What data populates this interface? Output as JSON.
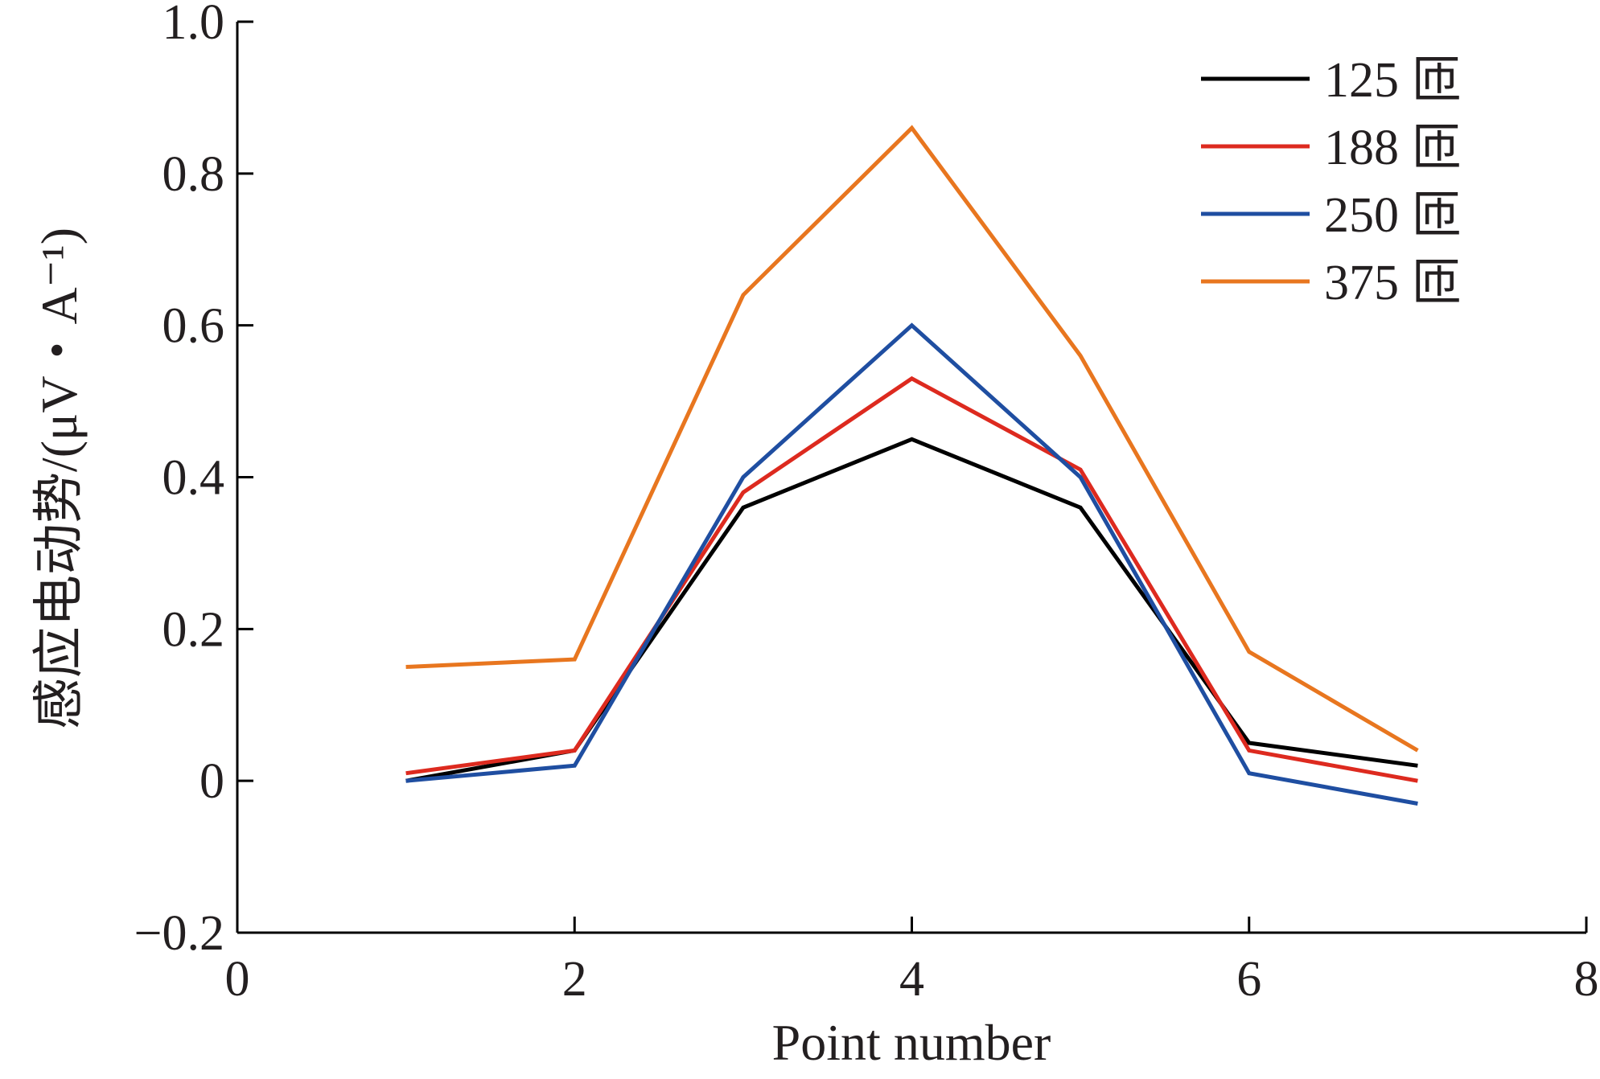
{
  "chart_data": {
    "type": "line",
    "title": "",
    "xlabel": "Point number",
    "ylabel": "感应电动势/(μV・A⁻¹)",
    "xlim": [
      0,
      8
    ],
    "ylim": [
      -0.2,
      1.0
    ],
    "x_ticks": [
      0,
      2,
      4,
      6,
      8
    ],
    "x_tick_labels": [
      "0",
      "2",
      "4",
      "6",
      "8"
    ],
    "y_ticks": [
      -0.2,
      0,
      0.2,
      0.4,
      0.6,
      0.8,
      1.0
    ],
    "y_tick_labels": [
      "−0.2",
      "0",
      "0.2",
      "0.4",
      "0.6",
      "0.8",
      "1.0"
    ],
    "grid": false,
    "legend_position": "top-right",
    "x": [
      1,
      2,
      3,
      4,
      5,
      6,
      7
    ],
    "series": [
      {
        "name": "125 匝",
        "color": "#000000",
        "values": [
          0.0,
          0.04,
          0.36,
          0.45,
          0.36,
          0.05,
          0.02
        ]
      },
      {
        "name": "188 匝",
        "color": "#dd2a1f",
        "values": [
          0.01,
          0.04,
          0.38,
          0.53,
          0.41,
          0.04,
          0.0
        ]
      },
      {
        "name": "250 匝",
        "color": "#1f4ea1",
        "values": [
          0.0,
          0.02,
          0.4,
          0.6,
          0.4,
          0.01,
          -0.03
        ]
      },
      {
        "name": "375 匝",
        "color": "#e8761f",
        "values": [
          0.15,
          0.16,
          0.64,
          0.86,
          0.56,
          0.17,
          0.04
        ]
      }
    ]
  }
}
